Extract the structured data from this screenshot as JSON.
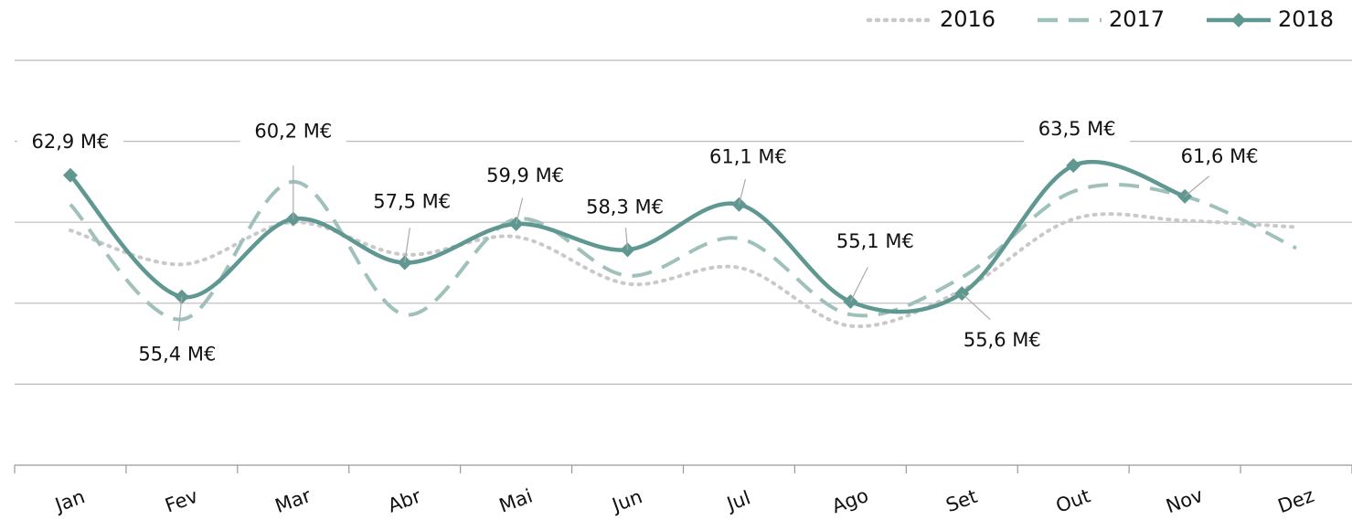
{
  "chart_data": {
    "type": "line",
    "categories": [
      "Jan",
      "Fev",
      "Mar",
      "Abr",
      "Mai",
      "Jun",
      "Jul",
      "Ago",
      "Set",
      "Out",
      "Nov",
      "Dez"
    ],
    "series": [
      {
        "name": "2016",
        "color": "#c9c9c9",
        "style": "dotted",
        "values": [
          59.5,
          57.4,
          60.0,
          58.0,
          59.1,
          56.2,
          57.2,
          53.6,
          55.8,
          60.2,
          60.1,
          59.7
        ]
      },
      {
        "name": "2017",
        "color": "#9fc0bb",
        "style": "dashed",
        "values": [
          61.1,
          54.0,
          62.5,
          54.3,
          60.2,
          56.7,
          59.0,
          54.3,
          56.6,
          61.9,
          61.6,
          58.4
        ]
      },
      {
        "name": "2018",
        "color": "#5f9791",
        "style": "solid",
        "marker": "diamond",
        "values": [
          62.9,
          55.4,
          60.2,
          57.5,
          59.9,
          58.3,
          61.1,
          55.1,
          55.6,
          63.5,
          61.6,
          null
        ],
        "value_labels": [
          "62,9 M€",
          "55,4 M€",
          "60,2 M€",
          "57,5 M€",
          "59,9 M€",
          "58,3 M€",
          "61,1 M€",
          "55,1 M€",
          "55,6 M€",
          "63,5 M€",
          "61,6 M€",
          null
        ]
      }
    ],
    "ylim": [
      45,
      70
    ],
    "yticks": [
      45,
      50,
      55,
      60,
      65,
      70
    ],
    "grid": true,
    "legend": "top-right"
  }
}
